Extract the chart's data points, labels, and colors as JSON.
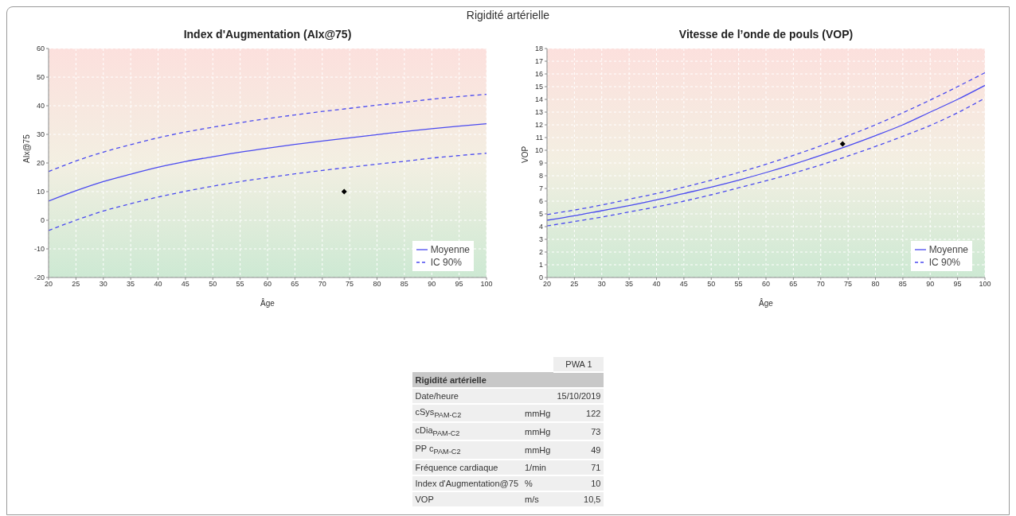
{
  "chart_data": [
    {
      "type": "other",
      "title": "Rigidité artérielle"
    },
    {
      "type": "line",
      "title": "Index d'Augmentation (AIx@75)",
      "xlabel": "Âge",
      "ylabel": "AIx@75",
      "x": [
        20,
        25,
        30,
        35,
        40,
        45,
        50,
        55,
        60,
        65,
        70,
        75,
        80,
        85,
        90,
        95,
        100
      ],
      "xlim": [
        20,
        100
      ],
      "xticks": [
        20,
        25,
        30,
        35,
        40,
        45,
        50,
        55,
        60,
        65,
        70,
        75,
        80,
        85,
        90,
        95,
        100
      ],
      "ylim": [
        -20,
        60
      ],
      "yticks": [
        -20,
        -10,
        0,
        10,
        20,
        30,
        40,
        50,
        60
      ],
      "grid": true,
      "legend": "bottom right",
      "marker": "none",
      "series": [
        {
          "name": "Moyenne",
          "color": "#4a4af0",
          "line_style": "solid",
          "values": [
            6.7,
            10.3,
            13.5,
            16.1,
            18.5,
            20.5,
            22.2,
            23.8,
            25.2,
            26.5,
            27.7,
            28.8,
            29.9,
            31,
            32,
            32.9,
            33.7
          ]
        },
        {
          "name": "IC 90%",
          "color": "#4a4af0",
          "line_style": "dashed",
          "values": [
            17,
            20.7,
            23.8,
            26.4,
            28.8,
            30.8,
            32.5,
            34.1,
            35.5,
            36.8,
            38,
            39.1,
            40.2,
            41.2,
            42.3,
            43.2,
            44
          ]
        },
        {
          "color": "#4a4af0",
          "line_style": "dashed",
          "values": [
            -3.6,
            0,
            3.2,
            5.8,
            8.1,
            10.1,
            11.9,
            13.5,
            14.9,
            16.2,
            17.4,
            18.5,
            19.6,
            20.6,
            21.7,
            22.6,
            23.4
          ]
        },
        {
          "type": "scatter",
          "marker": "diamond",
          "color": "#000000",
          "x": [
            74
          ],
          "values": [
            10
          ]
        }
      ]
    },
    {
      "type": "line",
      "title": "Vitesse de l’onde de pouls (VOP)",
      "xlabel": "Âge",
      "ylabel": "VOP",
      "x": [
        20,
        25,
        30,
        35,
        40,
        45,
        50,
        55,
        60,
        65,
        70,
        75,
        80,
        85,
        90,
        95,
        100
      ],
      "xlim": [
        20,
        100
      ],
      "xticks": [
        20,
        25,
        30,
        35,
        40,
        45,
        50,
        55,
        60,
        65,
        70,
        75,
        80,
        85,
        90,
        95,
        100
      ],
      "ylim": [
        0,
        18
      ],
      "yticks": [
        0,
        1,
        2,
        3,
        4,
        5,
        6,
        7,
        8,
        9,
        10,
        11,
        12,
        13,
        14,
        15,
        16,
        17,
        18
      ],
      "grid": true,
      "legend": "bottom right",
      "marker": "none",
      "series": [
        {
          "name": "Moyenne",
          "color": "#4a4af0",
          "line_style": "solid",
          "values": [
            4.5,
            4.85,
            5.25,
            5.65,
            6.1,
            6.6,
            7.1,
            7.65,
            8.25,
            8.9,
            9.6,
            10.35,
            11.15,
            12,
            13,
            14,
            15.1
          ]
        },
        {
          "name": "IC 90%",
          "color": "#4a4af0",
          "line_style": "dashed",
          "values": [
            4.95,
            5.3,
            5.7,
            6.15,
            6.6,
            7.1,
            7.65,
            8.25,
            8.9,
            9.6,
            10.35,
            11.15,
            12,
            12.95,
            13.95,
            15,
            16.1
          ]
        },
        {
          "color": "#4a4af0",
          "line_style": "dashed",
          "values": [
            4.05,
            4.4,
            4.75,
            5.15,
            5.55,
            6,
            6.5,
            7.05,
            7.6,
            8.2,
            8.85,
            9.55,
            10.3,
            11.1,
            11.95,
            12.95,
            14.1
          ]
        },
        {
          "type": "scatter",
          "marker": "diamond",
          "color": "#000000",
          "x": [
            74
          ],
          "values": [
            10.5
          ]
        }
      ]
    },
    {
      "type": "other",
      "title": "Rigidité artérielle",
      "categories": [
        null,
        "PWA 1"
      ],
      "y_categories": [
        "Date/heure",
        "cSys$_{PAM-C2}$",
        "cDia$_{PAM-C2}$",
        "PP c$_{PAM-C2}$",
        "Fréquence cardiaque",
        "Index d'Augmentation@75",
        "VOP"
      ],
      "cell_labels": [
        [
          null,
          "15/10/2019"
        ],
        [
          "mmHg",
          "122"
        ],
        [
          "mmHg",
          "73"
        ],
        [
          "mmHg",
          "49"
        ],
        [
          "1/min",
          "71"
        ],
        [
          "%",
          "10"
        ],
        [
          "m/s",
          "10,5"
        ]
      ]
    }
  ]
}
